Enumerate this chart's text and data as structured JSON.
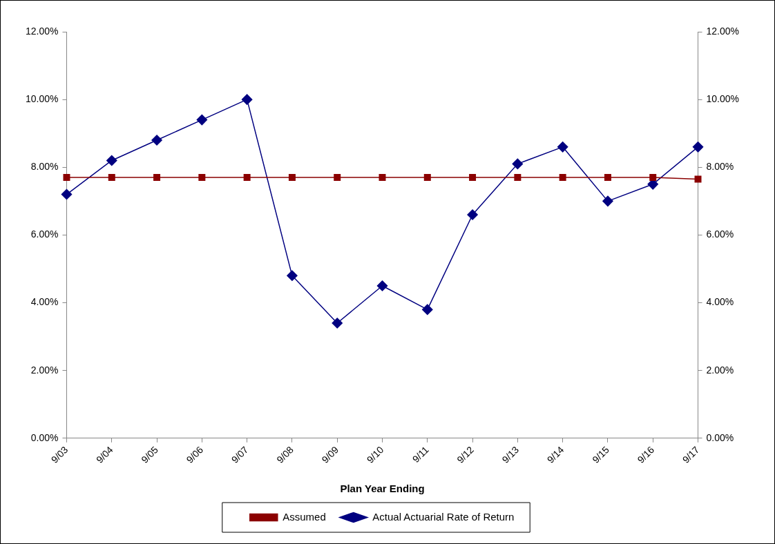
{
  "chart_data": {
    "type": "line",
    "xlabel": "Plan Year Ending",
    "categories": [
      "9/03",
      "9/04",
      "9/05",
      "9/06",
      "9/07",
      "9/08",
      "9/09",
      "9/10",
      "9/11",
      "9/12",
      "9/13",
      "9/14",
      "9/15",
      "9/16",
      "9/17"
    ],
    "series": [
      {
        "name": "Assumed",
        "color": "#8b0000",
        "marker": "square",
        "values": [
          7.7,
          7.7,
          7.7,
          7.7,
          7.7,
          7.7,
          7.7,
          7.7,
          7.7,
          7.7,
          7.7,
          7.7,
          7.7,
          7.7,
          7.65
        ]
      },
      {
        "name": "Actual Actuarial Rate of Return",
        "color": "#000080",
        "marker": "diamond",
        "values": [
          7.2,
          8.2,
          8.8,
          9.4,
          10.0,
          4.8,
          3.4,
          4.5,
          3.8,
          6.6,
          8.1,
          8.6,
          7.0,
          7.5,
          8.6
        ]
      }
    ],
    "ylim": [
      0,
      12
    ],
    "yticks": [
      {
        "value": 0,
        "label": "0.00%"
      },
      {
        "value": 2,
        "label": "2.00%"
      },
      {
        "value": 4,
        "label": "4.00%"
      },
      {
        "value": 6,
        "label": "6.00%"
      },
      {
        "value": 8,
        "label": "8.00%"
      },
      {
        "value": 10,
        "label": "10.00%"
      },
      {
        "value": 12,
        "label": "12.00%"
      }
    ],
    "y2lim": [
      0,
      12
    ],
    "y2ticks": [
      {
        "value": 0,
        "label": "0.00%"
      },
      {
        "value": 2,
        "label": "2.00%"
      },
      {
        "value": 4,
        "label": "4.00%"
      },
      {
        "value": 6,
        "label": "6.00%"
      },
      {
        "value": 8,
        "label": "8.00%"
      },
      {
        "value": 10,
        "label": "10.00%"
      },
      {
        "value": 12,
        "label": "12.00%"
      }
    ],
    "legend": "bottom",
    "line_style": "solid"
  }
}
